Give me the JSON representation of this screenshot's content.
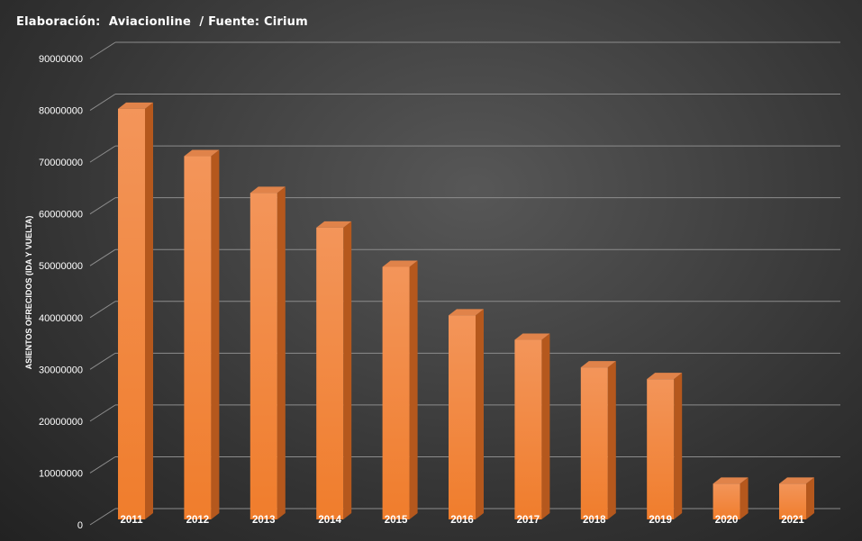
{
  "caption": "Elaboración:  Aviacionline  / Fuente: Cirium",
  "chart_data": {
    "type": "bar",
    "categories": [
      "2011",
      "2012",
      "2013",
      "2014",
      "2015",
      "2016",
      "2017",
      "2018",
      "2019",
      "2020",
      "2021"
    ],
    "values": [
      80500000,
      71200000,
      64000000,
      57200000,
      49500000,
      40000000,
      35200000,
      29800000,
      27500000,
      7000000,
      7000000
    ],
    "ylabel": "ASIENTOS OFRECIDOS (IDA Y VUELTA)",
    "ylim": [
      0,
      90000000
    ],
    "yticks": [
      "0",
      "10000000",
      "20000000",
      "30000000",
      "40000000",
      "50000000",
      "60000000",
      "70000000",
      "80000000",
      "90000000"
    ],
    "grid": true,
    "legend": "none",
    "colors": {
      "bar": "#f07d2c",
      "bar_light": "#f3955a",
      "bar_side": "#b5581d",
      "bar_top": "#e0834a",
      "grid": "#8c8c8c"
    }
  }
}
